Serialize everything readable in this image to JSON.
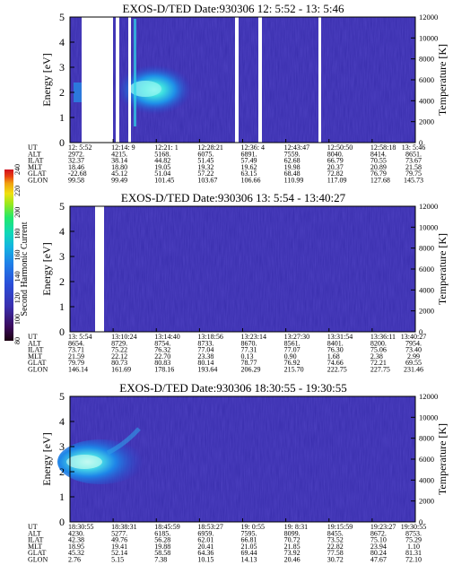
{
  "colorbar": {
    "label": "Second Harmonic Current",
    "ticks": [
      "80",
      "100",
      "120",
      "140",
      "160",
      "180",
      "200",
      "220",
      "240"
    ],
    "colors": [
      "#1a0010",
      "#3a0a5a",
      "#3a2fae",
      "#2a4ed8",
      "#1f7fe8",
      "#13b5e0",
      "#10d8b8",
      "#22e86a",
      "#9ae81c",
      "#f0e010",
      "#f0a010",
      "#e84010",
      "#d01020"
    ]
  },
  "charts": [
    {
      "title": "EXOS-D/TED   Date:930306  12: 5:52 - 13: 5:46",
      "ylabel": "Energy [eV]",
      "y2label": "Temperature [K]",
      "yticks": [
        "0",
        "1",
        "2",
        "3",
        "4",
        "5"
      ],
      "y2ticks": [
        "0",
        "2000",
        "4000",
        "6000",
        "8000",
        "10000",
        "12000"
      ],
      "row_labels": [
        "UT",
        "ALT",
        "ILAT",
        "MLT",
        "GLAT",
        "GLON"
      ],
      "columns": [
        [
          "12: 5:52",
          "2972.",
          "32.37",
          "18.46",
          "-22.68",
          "99.58"
        ],
        [
          "12:14: 9",
          "4215.",
          "38.14",
          "18.80",
          "45.12",
          "99.49"
        ],
        [
          "12:21: 1",
          "5168.",
          "44.82",
          "19.05",
          "51.04",
          "101.45"
        ],
        [
          "12:28:21",
          "6075.",
          "51.45",
          "19.32",
          "57.22",
          "103.67"
        ],
        [
          "12:36: 4",
          "6891.",
          "57.49",
          "19.62",
          "63.15",
          "106.66"
        ],
        [
          "12:43:47",
          "7559.",
          "62.68",
          "19.98",
          "68.48",
          "110.99"
        ],
        [
          "12:50:50",
          "8040.",
          "66.79",
          "20.37",
          "72.82",
          "117.09"
        ],
        [
          "12:58:18",
          "8414.",
          "70.55",
          "20.89",
          "76.79",
          "127.68"
        ],
        [
          "13: 5:46",
          "8651.",
          "73.67",
          "21.58",
          "79.75",
          "145.73"
        ]
      ]
    },
    {
      "title": "EXOS-D/TED   Date:930306  13: 5:54 - 13:40:27",
      "ylabel": "Energy [eV]",
      "y2label": "Temperature [K]",
      "yticks": [
        "0",
        "1",
        "2",
        "3",
        "4",
        "5"
      ],
      "y2ticks": [
        "0",
        "2000",
        "4000",
        "6000",
        "8000",
        "10000",
        "12000"
      ],
      "row_labels": [
        "UT",
        "ALT",
        "ILAT",
        "MLT",
        "GLAT",
        "GLON"
      ],
      "columns": [
        [
          "13: 5:54",
          "8654.",
          "73.71",
          "21.59",
          "79.79",
          "146.14"
        ],
        [
          "13:10:24",
          "8729.",
          "75.22",
          "22.12",
          "80.73",
          "161.69"
        ],
        [
          "13:14:40",
          "8754.",
          "76.32",
          "22.70",
          "80.83",
          "178.16"
        ],
        [
          "13:18:56",
          "8733.",
          "77.04",
          "23.38",
          "80.14",
          "193.64"
        ],
        [
          "13:23:14",
          "8670.",
          "77.31",
          "0.13",
          "78.77",
          "206.29"
        ],
        [
          "13:27:30",
          "8561.",
          "77.07",
          "0.90",
          "76.92",
          "215.70"
        ],
        [
          "13:31:54",
          "8401.",
          "76.30",
          "1.68",
          "74.66",
          "222.75"
        ],
        [
          "13:36:11",
          "8200.",
          "75.06",
          "2.38",
          "72.21",
          "227.75"
        ],
        [
          "13:40:27",
          "7954.",
          "73.40",
          "2.99",
          "69.55",
          "231.46"
        ]
      ]
    },
    {
      "title": "EXOS-D/TED   Date:930306  18:30:55 - 19:30:55",
      "ylabel": "Energy [eV]",
      "y2label": "Temperature [K]",
      "yticks": [
        "0",
        "1",
        "2",
        "3",
        "4",
        "5"
      ],
      "y2ticks": [
        "0",
        "2000",
        "4000",
        "6000",
        "8000",
        "10000",
        "12000"
      ],
      "row_labels": [
        "UT",
        "ALT",
        "ILAT",
        "MLT",
        "GLAT",
        "GLON"
      ],
      "columns": [
        [
          "18:30:55",
          "4230.",
          "42.38",
          "18.95",
          "45.32",
          "2.76"
        ],
        [
          "18:38:31",
          "5277.",
          "49.76",
          "19.41",
          "52.14",
          "5.15"
        ],
        [
          "18:45:59",
          "6185.",
          "56.28",
          "19.88",
          "58.58",
          "7.38"
        ],
        [
          "18:53:27",
          "6959.",
          "62.01",
          "20.41",
          "64.36",
          "10.15"
        ],
        [
          "19: 0:55",
          "7595.",
          "66.81",
          "21.05",
          "69.44",
          "14.13"
        ],
        [
          "19: 8:31",
          "8099.",
          "70.72",
          "21.85",
          "73.92",
          "20.46"
        ],
        [
          "19:15:59",
          "8455.",
          "73.52",
          "22.82",
          "77.58",
          "30.72"
        ],
        [
          "19:23:27",
          "8672.",
          "75.10",
          "23.94",
          "80.24",
          "47.67"
        ],
        [
          "19:30:55",
          "8753.",
          "75.29",
          "1.10",
          "81.31",
          "72.10"
        ]
      ]
    }
  ],
  "chart_data": [
    {
      "type": "heatmap",
      "title": "EXOS-D/TED   Date:930306  12: 5:52 - 13: 5:46",
      "ylabel": "Energy [eV]",
      "y2label": "Temperature [K]",
      "ylim": [
        0,
        5
      ],
      "y2lim": [
        0,
        12000
      ],
      "x": [
        "12: 5:52",
        "12:14: 9",
        "12:21: 1",
        "12:28:21",
        "12:36: 4",
        "12:43:47",
        "12:50:50",
        "12:58:18",
        "13: 5:46"
      ],
      "data_gaps": [
        [
          0.085,
          0.235
        ],
        [
          0.27,
          0.285
        ],
        [
          0.74,
          0.75
        ],
        [
          0.86,
          0.87
        ]
      ],
      "enhancement": {
        "time_range": [
          "12:21: 1",
          "12:28:21"
        ],
        "energy_range_eV": [
          1.5,
          3.0
        ],
        "peak_energy_eV": 2.2
      }
    },
    {
      "type": "heatmap",
      "title": "EXOS-D/TED   Date:930306  13: 5:54 - 13:40:27",
      "ylabel": "Energy [eV]",
      "y2label": "Temperature [K]",
      "ylim": [
        0,
        5
      ],
      "y2lim": [
        0,
        12000
      ],
      "x": [
        "13: 5:54",
        "13:10:24",
        "13:14:40",
        "13:18:56",
        "13:23:14",
        "13:27:30",
        "13:31:54",
        "13:36:11",
        "13:40:27"
      ],
      "data_gaps": [
        [
          0.083,
          0.1
        ]
      ]
    },
    {
      "type": "heatmap",
      "title": "EXOS-D/TED   Date:930306  18:30:55 - 19:30:55",
      "ylabel": "Energy [eV]",
      "y2label": "Temperature [K]",
      "ylim": [
        0,
        5
      ],
      "y2lim": [
        0,
        12000
      ],
      "x": [
        "18:30:55",
        "18:38:31",
        "18:45:59",
        "18:53:27",
        "19: 0:55",
        "19: 8:31",
        "19:15:59",
        "19:23:27",
        "19:30:55"
      ],
      "data_gaps": [],
      "enhancement": {
        "time_range": [
          "18:30:55",
          "18:45:59"
        ],
        "energy_range_eV": [
          1.6,
          3.3
        ],
        "peak_energy_eV": 2.4
      }
    }
  ]
}
